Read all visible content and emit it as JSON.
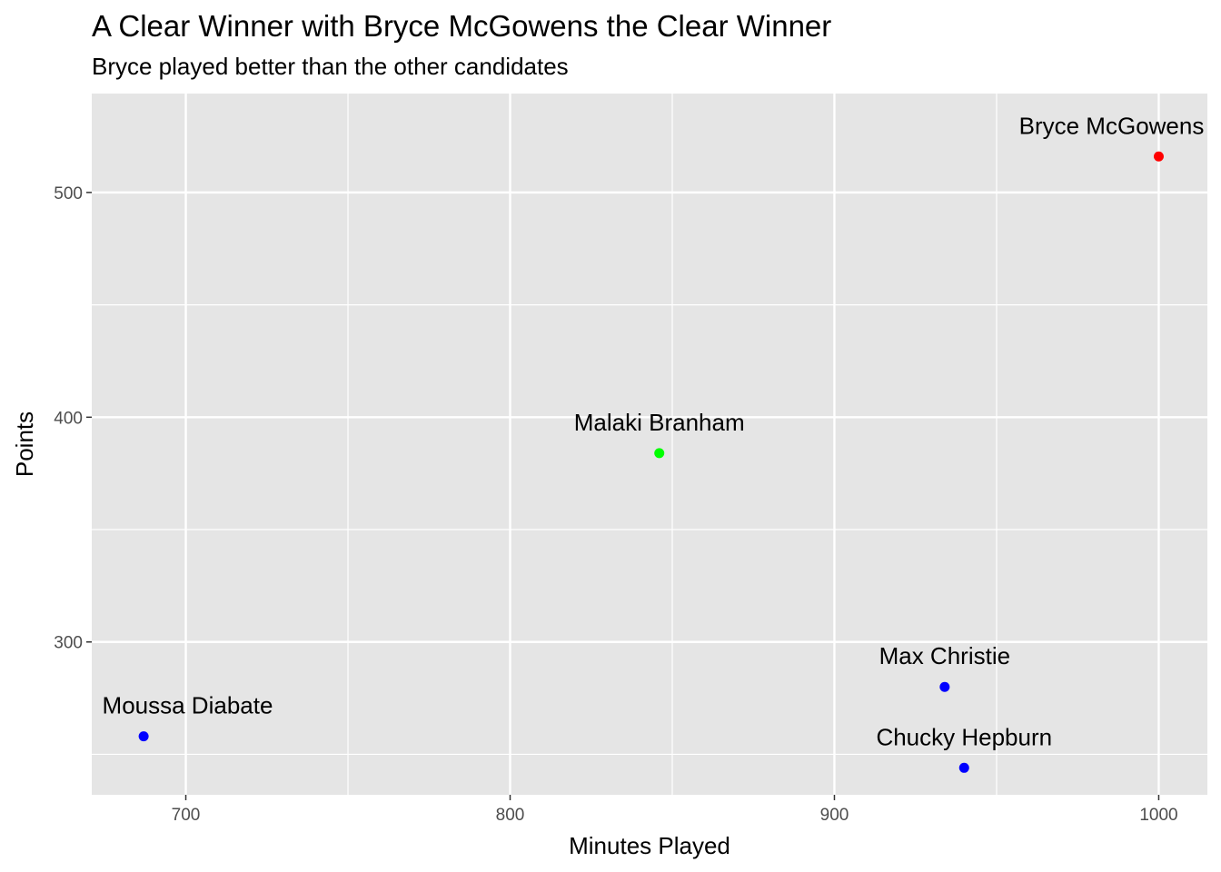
{
  "chart_data": {
    "type": "scatter",
    "title": "A Clear Winner with Bryce McGowens the Clear Winner",
    "subtitle": "Bryce played better than the other candidates",
    "xlabel": "Minutes Played",
    "ylabel": "Points",
    "xlim": [
      671,
      1015
    ],
    "ylim": [
      232,
      544
    ],
    "x_ticks": [
      700,
      800,
      900,
      1000
    ],
    "y_ticks": [
      300,
      400,
      500
    ],
    "x_minor_ticks": [
      750,
      850,
      950
    ],
    "y_minor_ticks": [
      250,
      350,
      450
    ],
    "grid": true,
    "legend": "none",
    "panel_background": "#e5e5e5",
    "points": [
      {
        "name": "Bryce McGowens",
        "x": 1000,
        "y": 516,
        "color": "#ff0000"
      },
      {
        "name": "Malaki Branham",
        "x": 846,
        "y": 384,
        "color": "#00ff00"
      },
      {
        "name": "Max Christie",
        "x": 934,
        "y": 280,
        "color": "#0000ff"
      },
      {
        "name": "Moussa Diabate",
        "x": 687,
        "y": 258,
        "color": "#0000ff"
      },
      {
        "name": "Chucky Hepburn",
        "x": 940,
        "y": 244,
        "color": "#0000ff"
      }
    ]
  }
}
